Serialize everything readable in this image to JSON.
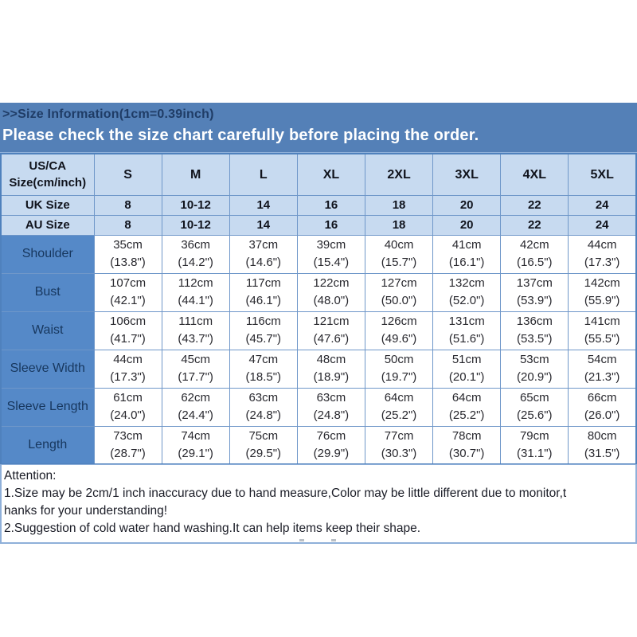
{
  "banner": {
    "line1": ">>Size Information(1cm=0.39inch)",
    "line2": "Please check the size chart carefully before placing the order."
  },
  "colors": {
    "banner_blue": "#5480b7",
    "light_blue_cell": "#c7daf0",
    "label_blue_cell": "#5589c8",
    "grid_border": "#6f97c9",
    "outer_border": "#4f81bd",
    "navy_text": "#17375e",
    "banner_title_text": "#1f3c66",
    "data_text": "#28282e",
    "white_text": "#ffffff"
  },
  "table": {
    "corner_label": "US/CA Size(cm/inch)",
    "size_headers": [
      "S",
      "M",
      "L",
      "XL",
      "2XL",
      "3XL",
      "4XL",
      "5XL"
    ],
    "region_rows": [
      {
        "label": "UK Size",
        "values": [
          "8",
          "10-12",
          "14",
          "16",
          "18",
          "20",
          "22",
          "24"
        ]
      },
      {
        "label": "AU Size",
        "values": [
          "8",
          "10-12",
          "14",
          "16",
          "18",
          "20",
          "22",
          "24"
        ]
      }
    ],
    "measurement_rows": [
      {
        "label": "Shoulder",
        "cm": [
          "35cm",
          "36cm",
          "37cm",
          "39cm",
          "40cm",
          "41cm",
          "42cm",
          "44cm"
        ],
        "inch": [
          "(13.8\")",
          "(14.2\")",
          "(14.6\")",
          "(15.4\")",
          "(15.7\")",
          "(16.1\")",
          "(16.5\")",
          "(17.3\")"
        ]
      },
      {
        "label": "Bust",
        "cm": [
          "107cm",
          "112cm",
          "117cm",
          "122cm",
          "127cm",
          "132cm",
          "137cm",
          "142cm"
        ],
        "inch": [
          "(42.1\")",
          "(44.1\")",
          "(46.1\")",
          "(48.0\")",
          "(50.0\")",
          "(52.0\")",
          "(53.9\")",
          "(55.9\")"
        ]
      },
      {
        "label": "Waist",
        "cm": [
          "106cm",
          "111cm",
          "116cm",
          "121cm",
          "126cm",
          "131cm",
          "136cm",
          "141cm"
        ],
        "inch": [
          "(41.7\")",
          "(43.7\")",
          "(45.7\")",
          "(47.6\")",
          "(49.6\")",
          "(51.6\")",
          "(53.5\")",
          "(55.5\")"
        ]
      },
      {
        "label": "Sleeve Width",
        "cm": [
          "44cm",
          "45cm",
          "47cm",
          "48cm",
          "50cm",
          "51cm",
          "53cm",
          "54cm"
        ],
        "inch": [
          "(17.3\")",
          "(17.7\")",
          "(18.5\")",
          "(18.9\")",
          "(19.7\")",
          "(20.1\")",
          "(20.9\")",
          "(21.3\")"
        ]
      },
      {
        "label": "Sleeve Length",
        "cm": [
          "61cm",
          "62cm",
          "63cm",
          "63cm",
          "64cm",
          "64cm",
          "65cm",
          "66cm"
        ],
        "inch": [
          "(24.0\")",
          "(24.4\")",
          "(24.8\")",
          "(24.8\")",
          "(25.2\")",
          "(25.2\")",
          "(25.6\")",
          "(26.0\")"
        ]
      },
      {
        "label": "Length",
        "cm": [
          "73cm",
          "74cm",
          "75cm",
          "76cm",
          "77cm",
          "78cm",
          "79cm",
          "80cm"
        ],
        "inch": [
          "(28.7\")",
          "(29.1\")",
          "(29.5\")",
          "(29.9\")",
          "(30.3\")",
          "(30.7\")",
          "(31.1\")",
          "(31.5\")"
        ]
      }
    ]
  },
  "attention": {
    "lines": [
      "Attention:",
      "1.Size may be 2cm/1 inch inaccuracy due to hand measure,Color may be little different due to monitor,t",
      "hanks for your understanding!",
      "2.Suggestion of cold water hand washing.It can help items keep their shape."
    ]
  }
}
